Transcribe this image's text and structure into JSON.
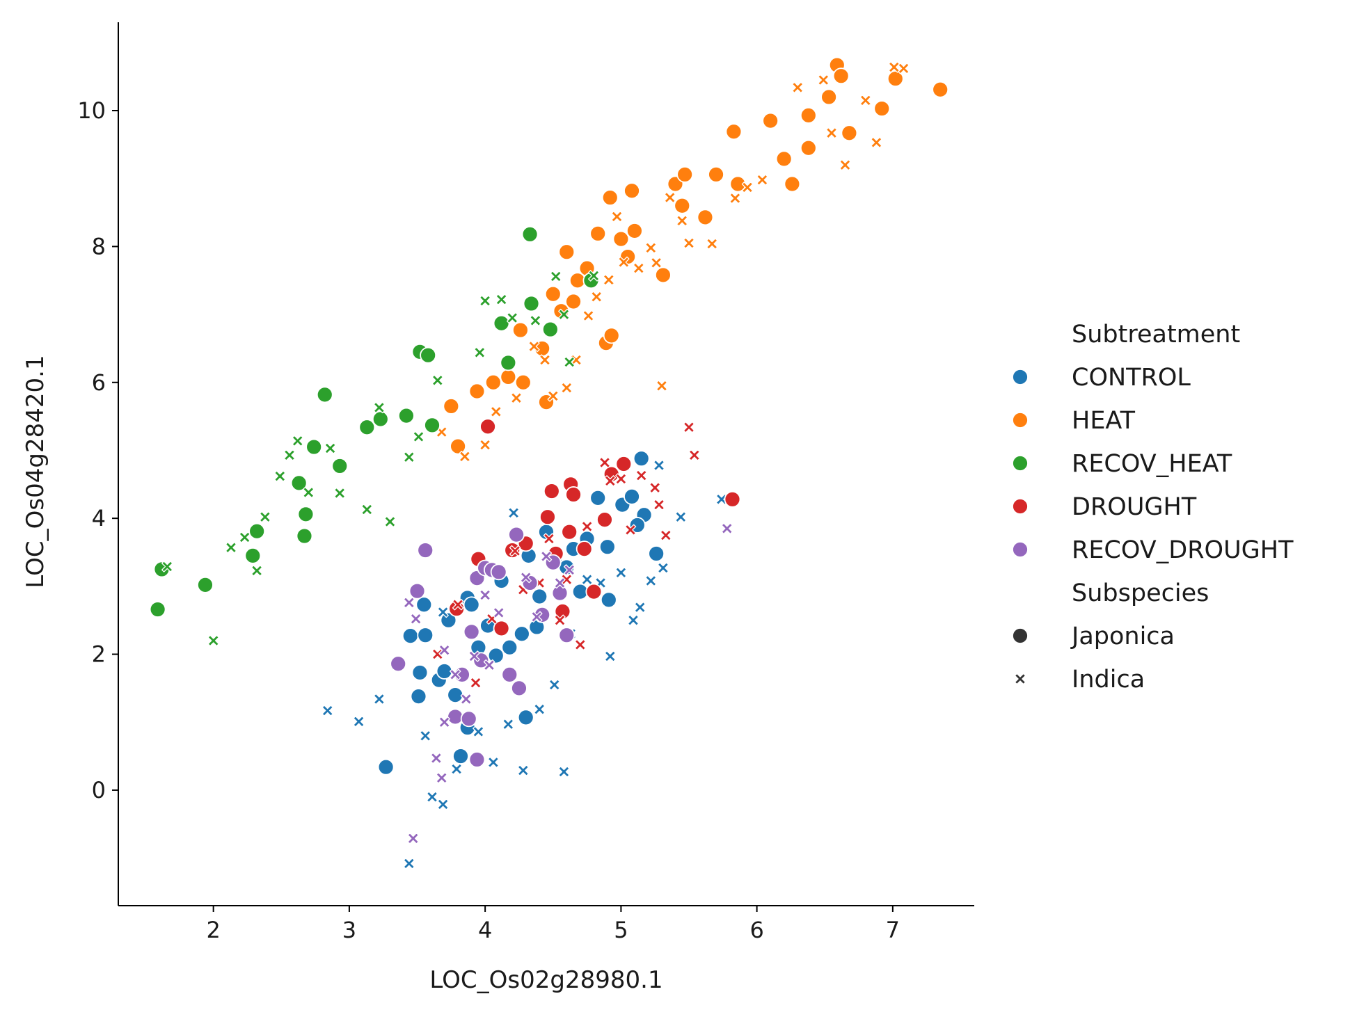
{
  "chart_data": {
    "type": "scatter",
    "title": "",
    "xlabel": "LOC_Os02g28980.1",
    "ylabel": "LOC_Os04g28420.1",
    "xlim": [
      1.3,
      7.6
    ],
    "ylim": [
      -1.7,
      11.3
    ],
    "xticks": [
      2,
      3,
      4,
      5,
      6,
      7
    ],
    "yticks": [
      0,
      2,
      4,
      6,
      8,
      10
    ],
    "grid": false,
    "legend_placement": "right",
    "legend": {
      "hue_title": "Subtreatment",
      "style_title": "Subspecies",
      "hue_entries": [
        "CONTROL",
        "HEAT",
        "RECOV_HEAT",
        "DROUGHT",
        "RECOV_DROUGHT"
      ],
      "style_entries": [
        "Japonica",
        "Indica"
      ]
    },
    "series": [
      {
        "name": "CONTROL",
        "color": "#1f77b4",
        "japonica": [
          [
            3.27,
            0.34
          ],
          [
            3.45,
            2.27
          ],
          [
            3.52,
            1.73
          ],
          [
            3.55,
            2.73
          ],
          [
            3.51,
            1.38
          ],
          [
            3.56,
            2.28
          ],
          [
            3.66,
            1.62
          ],
          [
            3.7,
            1.75
          ],
          [
            3.73,
            2.5
          ],
          [
            3.78,
            1.4
          ],
          [
            3.82,
            0.5
          ],
          [
            3.87,
            2.83
          ],
          [
            3.9,
            2.73
          ],
          [
            3.87,
            0.92
          ],
          [
            4.02,
            2.42
          ],
          [
            4.08,
            1.98
          ],
          [
            4.12,
            3.08
          ],
          [
            4.18,
            2.1
          ],
          [
            4.27,
            2.3
          ],
          [
            4.3,
            1.07
          ],
          [
            4.32,
            3.45
          ],
          [
            4.38,
            2.4
          ],
          [
            4.45,
            3.8
          ],
          [
            4.51,
            3.4
          ],
          [
            4.6,
            3.28
          ],
          [
            4.7,
            2.92
          ],
          [
            4.75,
            3.7
          ],
          [
            4.83,
            4.3
          ],
          [
            4.9,
            3.58
          ],
          [
            4.91,
            2.8
          ],
          [
            5.01,
            4.2
          ],
          [
            5.08,
            4.32
          ],
          [
            5.15,
            4.88
          ],
          [
            5.17,
            4.05
          ],
          [
            5.26,
            3.48
          ],
          [
            5.12,
            3.9
          ],
          [
            4.65,
            3.55
          ],
          [
            4.4,
            2.85
          ],
          [
            3.95,
            2.1
          ]
        ],
        "indica": [
          [
            2.84,
            1.17
          ],
          [
            3.07,
            1.01
          ],
          [
            3.22,
            1.34
          ],
          [
            3.44,
            -1.08
          ],
          [
            3.56,
            0.8
          ],
          [
            3.61,
            -0.1
          ],
          [
            3.69,
            -0.21
          ],
          [
            3.69,
            2.62
          ],
          [
            3.79,
            0.31
          ],
          [
            3.95,
            0.86
          ],
          [
            4.06,
            0.41
          ],
          [
            4.17,
            0.97
          ],
          [
            4.21,
            4.08
          ],
          [
            4.28,
            0.29
          ],
          [
            4.4,
            1.19
          ],
          [
            4.51,
            1.55
          ],
          [
            4.58,
            0.27
          ],
          [
            4.63,
            2.3
          ],
          [
            4.75,
            3.1
          ],
          [
            4.92,
            1.97
          ],
          [
            5.09,
            2.5
          ],
          [
            5.14,
            2.69
          ],
          [
            5.22,
            3.08
          ],
          [
            5.31,
            3.27
          ],
          [
            5.28,
            4.78
          ],
          [
            5.44,
            4.02
          ],
          [
            5.74,
            4.28
          ],
          [
            5.0,
            3.2
          ],
          [
            4.85,
            3.05
          ],
          [
            3.85,
            1.7
          ]
        ]
      },
      {
        "name": "HEAT",
        "color": "#ff7f0e",
        "japonica": [
          [
            3.75,
            5.65
          ],
          [
            3.8,
            5.06
          ],
          [
            3.94,
            5.87
          ],
          [
            4.06,
            6.0
          ],
          [
            4.17,
            6.08
          ],
          [
            4.28,
            6.0
          ],
          [
            4.26,
            6.77
          ],
          [
            4.42,
            6.5
          ],
          [
            4.45,
            5.71
          ],
          [
            4.56,
            7.05
          ],
          [
            4.6,
            7.92
          ],
          [
            4.65,
            7.19
          ],
          [
            4.68,
            7.5
          ],
          [
            4.75,
            7.68
          ],
          [
            4.83,
            8.19
          ],
          [
            4.89,
            6.58
          ],
          [
            4.92,
            8.72
          ],
          [
            4.93,
            6.69
          ],
          [
            5.0,
            8.11
          ],
          [
            5.08,
            8.82
          ],
          [
            5.1,
            8.23
          ],
          [
            5.31,
            7.58
          ],
          [
            5.4,
            8.92
          ],
          [
            5.47,
            9.06
          ],
          [
            5.45,
            8.6
          ],
          [
            5.62,
            8.43
          ],
          [
            5.7,
            9.06
          ],
          [
            5.83,
            9.69
          ],
          [
            5.86,
            8.92
          ],
          [
            6.1,
            9.85
          ],
          [
            6.2,
            9.29
          ],
          [
            6.26,
            8.92
          ],
          [
            6.38,
            9.45
          ],
          [
            6.38,
            9.93
          ],
          [
            6.53,
            10.2
          ],
          [
            6.59,
            10.67
          ],
          [
            6.62,
            10.51
          ],
          [
            6.68,
            9.67
          ],
          [
            6.92,
            10.03
          ],
          [
            7.02,
            10.47
          ],
          [
            7.35,
            10.31
          ],
          [
            4.5,
            7.3
          ],
          [
            5.05,
            7.85
          ]
        ],
        "indica": [
          [
            3.68,
            5.27
          ],
          [
            3.85,
            4.91
          ],
          [
            4.0,
            5.08
          ],
          [
            4.08,
            5.57
          ],
          [
            4.23,
            5.77
          ],
          [
            4.36,
            6.53
          ],
          [
            4.44,
            6.33
          ],
          [
            4.5,
            5.8
          ],
          [
            4.6,
            5.92
          ],
          [
            4.67,
            6.33
          ],
          [
            4.76,
            6.98
          ],
          [
            4.82,
            7.26
          ],
          [
            4.91,
            7.51
          ],
          [
            4.97,
            8.44
          ],
          [
            5.02,
            7.77
          ],
          [
            5.13,
            7.68
          ],
          [
            5.22,
            7.98
          ],
          [
            5.26,
            7.76
          ],
          [
            5.36,
            8.72
          ],
          [
            5.45,
            8.38
          ],
          [
            5.5,
            8.05
          ],
          [
            5.67,
            8.04
          ],
          [
            5.84,
            8.71
          ],
          [
            5.93,
            8.87
          ],
          [
            6.04,
            8.98
          ],
          [
            6.3,
            10.34
          ],
          [
            6.49,
            10.45
          ],
          [
            6.55,
            9.67
          ],
          [
            6.65,
            9.2
          ],
          [
            6.8,
            10.15
          ],
          [
            6.88,
            9.53
          ],
          [
            7.01,
            10.64
          ],
          [
            7.08,
            10.62
          ],
          [
            5.3,
            5.95
          ]
        ]
      },
      {
        "name": "RECOV_HEAT",
        "color": "#2ca02c",
        "japonica": [
          [
            1.59,
            2.66
          ],
          [
            1.62,
            3.25
          ],
          [
            1.94,
            3.02
          ],
          [
            2.29,
            3.45
          ],
          [
            2.32,
            3.81
          ],
          [
            2.63,
            4.52
          ],
          [
            2.67,
            3.74
          ],
          [
            2.68,
            4.06
          ],
          [
            2.74,
            5.05
          ],
          [
            2.82,
            5.82
          ],
          [
            2.93,
            4.77
          ],
          [
            3.13,
            5.34
          ],
          [
            3.23,
            5.46
          ],
          [
            3.42,
            5.51
          ],
          [
            3.52,
            6.45
          ],
          [
            3.58,
            6.4
          ],
          [
            3.61,
            5.37
          ],
          [
            4.12,
            6.87
          ],
          [
            4.17,
            6.29
          ],
          [
            4.33,
            8.18
          ],
          [
            4.34,
            7.16
          ],
          [
            4.48,
            6.78
          ],
          [
            4.78,
            7.5
          ]
        ],
        "indica": [
          [
            1.66,
            3.29
          ],
          [
            2.0,
            2.2
          ],
          [
            2.13,
            3.57
          ],
          [
            2.23,
            3.72
          ],
          [
            2.32,
            3.23
          ],
          [
            2.38,
            4.02
          ],
          [
            2.49,
            4.62
          ],
          [
            2.56,
            4.93
          ],
          [
            2.62,
            5.14
          ],
          [
            2.7,
            4.38
          ],
          [
            2.86,
            5.03
          ],
          [
            2.93,
            4.37
          ],
          [
            3.13,
            4.13
          ],
          [
            3.22,
            5.63
          ],
          [
            3.3,
            3.95
          ],
          [
            3.44,
            4.9
          ],
          [
            3.51,
            5.2
          ],
          [
            3.65,
            6.03
          ],
          [
            3.96,
            6.44
          ],
          [
            4.0,
            7.2
          ],
          [
            4.12,
            7.22
          ],
          [
            4.2,
            6.95
          ],
          [
            4.37,
            6.91
          ],
          [
            4.52,
            7.56
          ],
          [
            4.58,
            7.0
          ],
          [
            4.62,
            6.3
          ],
          [
            4.8,
            7.57
          ]
        ]
      },
      {
        "name": "DROUGHT",
        "color": "#d62728",
        "japonica": [
          [
            3.79,
            2.67
          ],
          [
            3.95,
            3.4
          ],
          [
            4.02,
            5.35
          ],
          [
            4.12,
            2.38
          ],
          [
            4.2,
            3.53
          ],
          [
            4.3,
            3.63
          ],
          [
            4.46,
            4.02
          ],
          [
            4.49,
            4.4
          ],
          [
            4.52,
            3.48
          ],
          [
            4.57,
            2.63
          ],
          [
            4.62,
            3.8
          ],
          [
            4.63,
            4.5
          ],
          [
            4.65,
            4.35
          ],
          [
            4.73,
            3.55
          ],
          [
            4.8,
            2.92
          ],
          [
            4.88,
            3.98
          ],
          [
            4.93,
            4.65
          ],
          [
            5.02,
            4.8
          ],
          [
            5.82,
            4.28
          ]
        ],
        "indica": [
          [
            3.65,
            2.0
          ],
          [
            3.8,
            2.73
          ],
          [
            3.93,
            1.58
          ],
          [
            4.05,
            2.52
          ],
          [
            4.22,
            3.52
          ],
          [
            4.28,
            2.95
          ],
          [
            4.4,
            3.05
          ],
          [
            4.47,
            3.7
          ],
          [
            4.55,
            2.5
          ],
          [
            4.6,
            3.1
          ],
          [
            4.7,
            2.14
          ],
          [
            4.75,
            3.88
          ],
          [
            4.88,
            4.82
          ],
          [
            4.92,
            4.55
          ],
          [
            5.0,
            4.58
          ],
          [
            5.07,
            3.83
          ],
          [
            5.15,
            4.63
          ],
          [
            5.25,
            4.45
          ],
          [
            5.28,
            4.2
          ],
          [
            5.33,
            3.75
          ],
          [
            5.5,
            5.34
          ],
          [
            5.54,
            4.93
          ]
        ]
      },
      {
        "name": "RECOV_DROUGHT",
        "color": "#9467bd",
        "japonica": [
          [
            3.36,
            1.86
          ],
          [
            3.5,
            2.93
          ],
          [
            3.56,
            3.53
          ],
          [
            3.78,
            1.08
          ],
          [
            3.83,
            1.7
          ],
          [
            3.9,
            2.33
          ],
          [
            3.94,
            3.12
          ],
          [
            3.94,
            0.45
          ],
          [
            3.97,
            1.91
          ],
          [
            4.0,
            3.27
          ],
          [
            4.05,
            3.24
          ],
          [
            4.1,
            3.21
          ],
          [
            4.18,
            1.7
          ],
          [
            4.23,
            3.76
          ],
          [
            4.25,
            1.5
          ],
          [
            4.33,
            3.05
          ],
          [
            4.42,
            2.58
          ],
          [
            4.5,
            3.35
          ],
          [
            4.55,
            2.9
          ],
          [
            4.6,
            2.28
          ],
          [
            3.88,
            1.05
          ]
        ],
        "indica": [
          [
            3.44,
            2.76
          ],
          [
            3.47,
            -0.71
          ],
          [
            3.49,
            2.52
          ],
          [
            3.64,
            0.47
          ],
          [
            3.68,
            0.18
          ],
          [
            3.7,
            2.06
          ],
          [
            3.78,
            1.7
          ],
          [
            3.86,
            1.34
          ],
          [
            3.92,
            1.97
          ],
          [
            4.0,
            2.87
          ],
          [
            4.03,
            1.84
          ],
          [
            4.1,
            2.61
          ],
          [
            4.3,
            3.13
          ],
          [
            4.38,
            2.55
          ],
          [
            4.45,
            3.44
          ],
          [
            4.55,
            3.05
          ],
          [
            4.62,
            3.24
          ],
          [
            5.78,
            3.85
          ],
          [
            3.7,
            1.0
          ]
        ]
      }
    ]
  }
}
